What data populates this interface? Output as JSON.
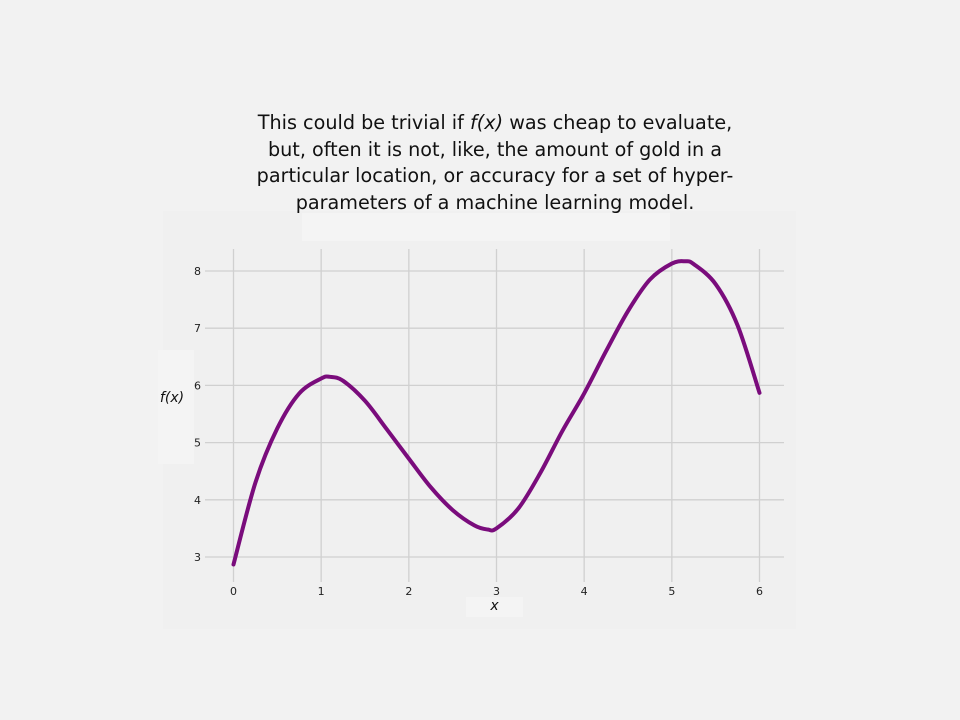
{
  "caption": {
    "before": "This could be trivial if ",
    "em": "f(x)",
    "after": " was cheap to evaluate, but, often it is not, like, the amount of gold in a particular location, or accuracy for a set of hyper-parameters of a machine learning model."
  },
  "colors": {
    "line": "#7a0c7c",
    "grid": "#d0d0d0",
    "background": "#f2f2f2"
  },
  "chart_data": {
    "type": "line",
    "title": "",
    "xlabel": "x",
    "ylabel": "f(x)",
    "xlim": [
      0,
      6
    ],
    "ylim": [
      3,
      8
    ],
    "xticks": [
      0,
      1,
      2,
      3,
      4,
      5,
      6
    ],
    "yticks": [
      3,
      4,
      5,
      6,
      7,
      8
    ],
    "grid": true,
    "series": [
      {
        "x": [
          0,
          0.25,
          0.5,
          0.75,
          1.0,
          1.1,
          1.25,
          1.5,
          1.75,
          2.0,
          2.25,
          2.5,
          2.75,
          2.9,
          3.0,
          3.25,
          3.5,
          3.75,
          4.0,
          4.25,
          4.5,
          4.75,
          5.0,
          5.15,
          5.25,
          5.5,
          5.75,
          6.0
        ],
        "y": [
          2.87,
          4.3,
          5.25,
          5.86,
          6.12,
          6.15,
          6.08,
          5.73,
          5.23,
          4.72,
          4.22,
          3.82,
          3.55,
          3.48,
          3.5,
          3.85,
          4.47,
          5.2,
          5.86,
          6.6,
          7.3,
          7.85,
          8.13,
          8.17,
          8.12,
          7.77,
          7.05,
          5.87
        ]
      }
    ]
  }
}
